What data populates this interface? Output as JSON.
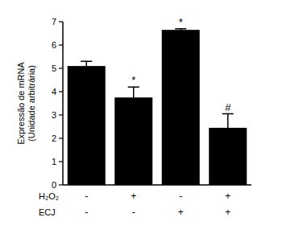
{
  "chart_data": {
    "type": "bar",
    "y_label": [
      "Expressão de mRNA",
      "(Unidade arbitrária)"
    ],
    "categories": [
      null,
      null,
      null,
      null
    ],
    "values": [
      5.1,
      3.75,
      6.65,
      2.45
    ],
    "errors": [
      0.2,
      0.45,
      0.05,
      0.6
    ],
    "significance": [
      null,
      "*",
      "*",
      "#"
    ],
    "factors": [
      {
        "name": "H₂O₂",
        "levels": [
          "-",
          "+",
          "-",
          "+"
        ]
      },
      {
        "name": "ECJ",
        "levels": [
          "-",
          "-",
          "+",
          "+"
        ]
      }
    ],
    "color": "#000000",
    "ylim": [
      0,
      7
    ],
    "yticks": [
      0,
      1,
      2,
      3,
      4,
      5,
      6,
      7
    ],
    "grid": false
  }
}
